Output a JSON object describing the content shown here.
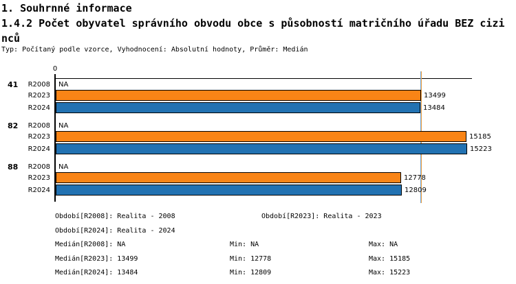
{
  "header": {
    "section_title": "1. Souhrnné informace",
    "indicator_title": "1.4.2 Počet obyvatel správního obvodu obce s působností matričního úřadu BEZ cizinců",
    "meta_line": "Typ: Počítaný podle vzorce, Vyhodnocení: Absolutní hodnoty, Průměr: Medián"
  },
  "chart_data": {
    "type": "bar",
    "orientation": "horizontal",
    "title": "1.4.2 Počet obyvatel správního obvodu obce s působností matričního úřadu BEZ cizinců",
    "x_axis": {
      "zero_label": "0",
      "min": 0,
      "max_value_shown": 15223,
      "grid": "median lines only"
    },
    "na_text": "NA",
    "series_colors": {
      "R2023": "#F98416",
      "R2024": "#2272B2"
    },
    "groups": [
      {
        "label": "41",
        "bars": [
          {
            "series": "R2008",
            "value": null,
            "display": "NA",
            "color": null
          },
          {
            "series": "R2023",
            "value": 13499,
            "display": "13499",
            "color": "#F98416"
          },
          {
            "series": "R2024",
            "value": 13484,
            "display": "13484",
            "color": "#2272B2"
          }
        ]
      },
      {
        "label": "82",
        "bars": [
          {
            "series": "R2008",
            "value": null,
            "display": "NA",
            "color": null
          },
          {
            "series": "R2023",
            "value": 15185,
            "display": "15185",
            "color": "#F98416"
          },
          {
            "series": "R2024",
            "value": 15223,
            "display": "15223",
            "color": "#2272B2"
          }
        ]
      },
      {
        "label": "88",
        "bars": [
          {
            "series": "R2008",
            "value": null,
            "display": "NA",
            "color": null
          },
          {
            "series": "R2023",
            "value": 12778,
            "display": "12778",
            "color": "#F98416"
          },
          {
            "series": "R2024",
            "value": 12809,
            "display": "12809",
            "color": "#2272B2"
          }
        ]
      }
    ],
    "median_lines": [
      {
        "series": "R2024",
        "value": 13484,
        "color": "#6FA8DC"
      },
      {
        "series": "R2023",
        "value": 13499,
        "color": "#F6A23E"
      }
    ]
  },
  "legend": {
    "period_r2008": "Období[R2008]: Realita - 2008",
    "period_r2023": "Období[R2023]: Realita - 2023",
    "period_r2024": "Období[R2024]: Realita - 2024",
    "median_r2008": "Medián[R2008]: NA",
    "min_r2008": "Min: NA",
    "max_r2008": "Max: NA",
    "median_r2023": "Medián[R2023]: 13499",
    "min_r2023": "Min: 12778",
    "max_r2023": "Max: 15185",
    "median_r2024": "Medián[R2024]: 13484",
    "min_r2024": "Min: 12809",
    "max_r2024": "Max: 15223"
  }
}
